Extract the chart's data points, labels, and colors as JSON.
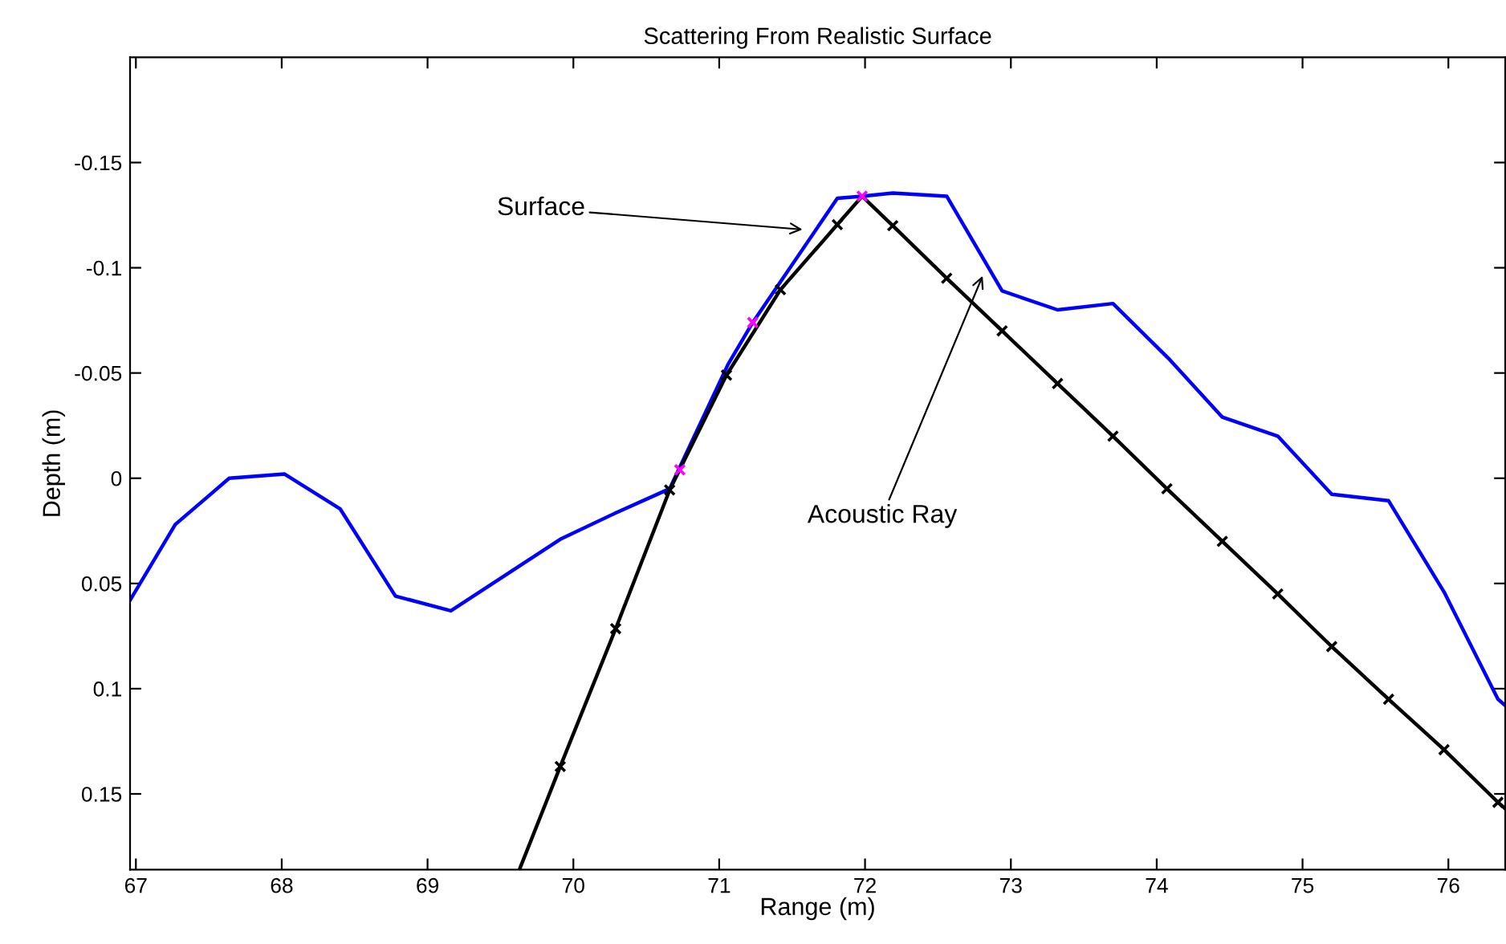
{
  "chart_data": {
    "type": "line",
    "title": "Scattering From Realistic Surface",
    "xlabel": "Range (m)",
    "ylabel": "Depth (m)",
    "xlim": [
      66.96,
      76.39
    ],
    "ylim": [
      0.186,
      -0.2
    ],
    "xticks": [
      67,
      68,
      69,
      70,
      71,
      72,
      73,
      74,
      75,
      76
    ],
    "yticks": [
      -0.15,
      -0.1,
      -0.05,
      0,
      0.05,
      0.1,
      0.15
    ],
    "grid": false,
    "legend": false,
    "series": [
      {
        "color": "#0000ff",
        "marker": "none",
        "line_style": "solid",
        "x": [
          66.96,
          67.27,
          67.64,
          68.02,
          68.4,
          68.78,
          69.16,
          69.91,
          70.29,
          70.66,
          71.06,
          71.23,
          71.81,
          71.98,
          72.19,
          72.56,
          72.94,
          73.32,
          73.7,
          74.08,
          74.45,
          74.83,
          75.2,
          75.59,
          75.97,
          76.34,
          76.39
        ],
        "values": [
          0.058,
          0.022,
          0.0,
          -0.002,
          0.0145,
          0.056,
          0.063,
          0.029,
          0.0165,
          0.005,
          -0.054,
          -0.074,
          -0.133,
          -0.134,
          -0.1355,
          -0.134,
          -0.089,
          -0.08,
          -0.083,
          -0.057,
          -0.029,
          -0.02,
          0.0076,
          0.0107,
          0.054,
          0.105,
          0.108
        ]
      },
      {
        "color": "#000000",
        "marker": "none",
        "line_style": "solid",
        "x": [
          69.63,
          69.91,
          70.29,
          70.66,
          71.05,
          71.42,
          71.81,
          71.98,
          72.19,
          72.56,
          72.94,
          73.32,
          73.7,
          74.07,
          74.45,
          74.83,
          75.2,
          75.59,
          75.97,
          76.34,
          76.39
        ],
        "values": [
          0.186,
          0.137,
          0.0715,
          0.0056,
          -0.049,
          -0.0896,
          -0.1205,
          -0.134,
          -0.12,
          -0.095,
          -0.07,
          -0.045,
          -0.02,
          0.005,
          0.03,
          0.055,
          0.08,
          0.105,
          0.129,
          0.154,
          0.157
        ]
      },
      {
        "type": "scatter",
        "color": "#000000",
        "marker": "cross",
        "x": [
          69.91,
          70.29,
          70.66,
          71.05,
          71.42,
          71.81,
          72.19,
          72.56,
          72.94,
          73.32,
          73.7,
          74.07,
          74.45,
          74.83,
          75.2,
          75.59,
          75.97,
          76.34
        ],
        "values": [
          0.137,
          0.0715,
          0.0056,
          -0.049,
          -0.0896,
          -0.1205,
          -0.12,
          -0.095,
          -0.07,
          -0.045,
          -0.02,
          0.005,
          0.03,
          0.055,
          0.08,
          0.105,
          0.129,
          0.154
        ]
      },
      {
        "type": "scatter",
        "color": "#ff00ff",
        "marker": "cross",
        "x": [
          70.73,
          71.23,
          71.98
        ],
        "values": [
          -0.004,
          -0.074,
          -0.134
        ]
      }
    ],
    "annotations": [
      "Surface",
      "Acoustic Ray"
    ]
  }
}
